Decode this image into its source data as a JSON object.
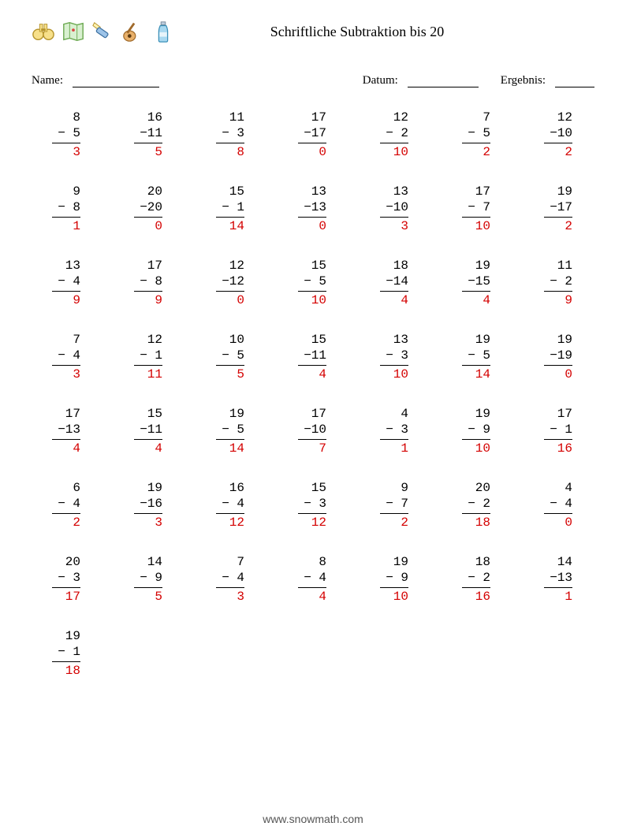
{
  "title": "Schriftliche Subtraktion bis 20",
  "fields": {
    "name_label": "Name:",
    "date_label": "Datum:",
    "result_label": "Ergebnis:",
    "name_blank_width": 110,
    "date_blank_width": 90,
    "result_blank_width": 50
  },
  "layout": {
    "columns": 7,
    "problem_fontsize": 16,
    "answer_color": "#d40000",
    "rule_color": "#000000",
    "background": "#ffffff"
  },
  "problems": [
    {
      "a": 8,
      "b": 5,
      "r": 3
    },
    {
      "a": 16,
      "b": 11,
      "r": 5
    },
    {
      "a": 11,
      "b": 3,
      "r": 8
    },
    {
      "a": 17,
      "b": 17,
      "r": 0
    },
    {
      "a": 12,
      "b": 2,
      "r": 10
    },
    {
      "a": 7,
      "b": 5,
      "r": 2
    },
    {
      "a": 12,
      "b": 10,
      "r": 2
    },
    {
      "a": 9,
      "b": 8,
      "r": 1
    },
    {
      "a": 20,
      "b": 20,
      "r": 0
    },
    {
      "a": 15,
      "b": 1,
      "r": 14
    },
    {
      "a": 13,
      "b": 13,
      "r": 0
    },
    {
      "a": 13,
      "b": 10,
      "r": 3
    },
    {
      "a": 17,
      "b": 7,
      "r": 10
    },
    {
      "a": 19,
      "b": 17,
      "r": 2
    },
    {
      "a": 13,
      "b": 4,
      "r": 9
    },
    {
      "a": 17,
      "b": 8,
      "r": 9
    },
    {
      "a": 12,
      "b": 12,
      "r": 0
    },
    {
      "a": 15,
      "b": 5,
      "r": 10
    },
    {
      "a": 18,
      "b": 14,
      "r": 4
    },
    {
      "a": 19,
      "b": 15,
      "r": 4
    },
    {
      "a": 11,
      "b": 2,
      "r": 9
    },
    {
      "a": 7,
      "b": 4,
      "r": 3
    },
    {
      "a": 12,
      "b": 1,
      "r": 11
    },
    {
      "a": 10,
      "b": 5,
      "r": 5
    },
    {
      "a": 15,
      "b": 11,
      "r": 4
    },
    {
      "a": 13,
      "b": 3,
      "r": 10
    },
    {
      "a": 19,
      "b": 5,
      "r": 14
    },
    {
      "a": 19,
      "b": 19,
      "r": 0
    },
    {
      "a": 17,
      "b": 13,
      "r": 4
    },
    {
      "a": 15,
      "b": 11,
      "r": 4
    },
    {
      "a": 19,
      "b": 5,
      "r": 14
    },
    {
      "a": 17,
      "b": 10,
      "r": 7
    },
    {
      "a": 4,
      "b": 3,
      "r": 1
    },
    {
      "a": 19,
      "b": 9,
      "r": 10
    },
    {
      "a": 17,
      "b": 1,
      "r": 16
    },
    {
      "a": 6,
      "b": 4,
      "r": 2
    },
    {
      "a": 19,
      "b": 16,
      "r": 3
    },
    {
      "a": 16,
      "b": 4,
      "r": 12
    },
    {
      "a": 15,
      "b": 3,
      "r": 12
    },
    {
      "a": 9,
      "b": 7,
      "r": 2
    },
    {
      "a": 20,
      "b": 2,
      "r": 18
    },
    {
      "a": 4,
      "b": 4,
      "r": 0
    },
    {
      "a": 20,
      "b": 3,
      "r": 17
    },
    {
      "a": 14,
      "b": 9,
      "r": 5
    },
    {
      "a": 7,
      "b": 4,
      "r": 3
    },
    {
      "a": 8,
      "b": 4,
      "r": 4
    },
    {
      "a": 19,
      "b": 9,
      "r": 10
    },
    {
      "a": 18,
      "b": 2,
      "r": 16
    },
    {
      "a": 14,
      "b": 13,
      "r": 1
    },
    {
      "a": 19,
      "b": 1,
      "r": 18
    }
  ],
  "footer": "www.snowmath.com",
  "icons": [
    "binoculars",
    "map",
    "flashlight",
    "guitar",
    "bottle"
  ]
}
